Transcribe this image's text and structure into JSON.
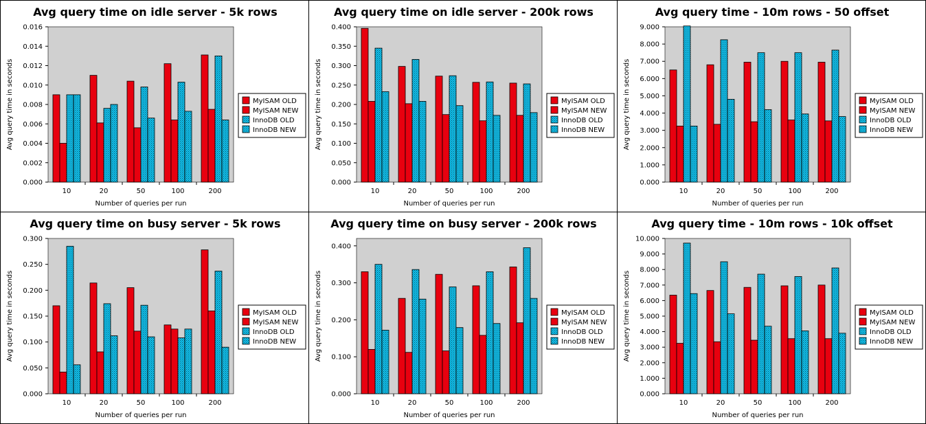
{
  "chart_data": [
    {
      "type": "bar",
      "title": "Avg query time on idle server - 5k rows",
      "xlabel": "Number of queries per run",
      "ylabel": "Avg query time in seconds",
      "categories": [
        "10",
        "20",
        "50",
        "100",
        "200"
      ],
      "ylim": [
        0,
        0.016
      ],
      "yticks": [
        "0.000",
        "0.002",
        "0.004",
        "0.006",
        "0.008",
        "0.010",
        "0.012",
        "0.014",
        "0.016"
      ],
      "series": [
        {
          "name": "MyISAM OLD",
          "values": [
            0.009,
            0.011,
            0.0104,
            0.0122,
            0.0131
          ]
        },
        {
          "name": "MyISAM NEW",
          "values": [
            0.004,
            0.0061,
            0.0056,
            0.0064,
            0.0075
          ]
        },
        {
          "name": "InnoDB OLD",
          "values": [
            0.009,
            0.0076,
            0.0098,
            0.0103,
            0.013
          ]
        },
        {
          "name": "InnoDB NEW",
          "values": [
            0.009,
            0.008,
            0.0066,
            0.0073,
            0.0064
          ]
        }
      ],
      "grid": false,
      "legend": "right"
    },
    {
      "type": "bar",
      "title": "Avg query time on idle server - 200k rows",
      "xlabel": "Number of queries per run",
      "ylabel": "Avg query time in seconds",
      "categories": [
        "10",
        "20",
        "50",
        "100",
        "200"
      ],
      "ylim": [
        0,
        0.4
      ],
      "yticks": [
        "0.000",
        "0.050",
        "0.100",
        "0.150",
        "0.200",
        "0.250",
        "0.300",
        "0.350",
        "0.400"
      ],
      "series": [
        {
          "name": "MyISAM OLD",
          "values": [
            0.396,
            0.298,
            0.273,
            0.257,
            0.255
          ]
        },
        {
          "name": "MyISAM NEW",
          "values": [
            0.208,
            0.202,
            0.174,
            0.158,
            0.172
          ]
        },
        {
          "name": "InnoDB OLD",
          "values": [
            0.345,
            0.316,
            0.274,
            0.258,
            0.253
          ]
        },
        {
          "name": "InnoDB NEW",
          "values": [
            0.233,
            0.208,
            0.197,
            0.172,
            0.179
          ]
        }
      ],
      "grid": false,
      "legend": "right"
    },
    {
      "type": "bar",
      "title": "Avg query time - 10m rows - 50 offset",
      "xlabel": "Number of queries per run",
      "ylabel": "Avg query time in seconds",
      "categories": [
        "10",
        "20",
        "50",
        "100",
        "200"
      ],
      "ylim": [
        0,
        9.0
      ],
      "yticks": [
        "0.000",
        "1.000",
        "2.000",
        "3.000",
        "4.000",
        "5.000",
        "6.000",
        "7.000",
        "8.000",
        "9.000"
      ],
      "series": [
        {
          "name": "MyISAM OLD",
          "values": [
            6.5,
            6.8,
            6.95,
            7.0,
            6.95
          ]
        },
        {
          "name": "MyISAM NEW",
          "values": [
            3.25,
            3.35,
            3.5,
            3.6,
            3.55
          ]
        },
        {
          "name": "InnoDB OLD",
          "values": [
            9.05,
            8.25,
            7.5,
            7.5,
            7.65
          ]
        },
        {
          "name": "InnoDB NEW",
          "values": [
            3.25,
            4.8,
            4.2,
            3.95,
            3.8
          ]
        }
      ],
      "grid": false,
      "legend": "right"
    },
    {
      "type": "bar",
      "title": "Avg query time on busy server - 5k rows",
      "xlabel": "Number of queries per run",
      "ylabel": "Avg query time in seconds",
      "categories": [
        "10",
        "20",
        "50",
        "100",
        "200"
      ],
      "ylim": [
        0,
        0.3
      ],
      "yticks": [
        "0.000",
        "0.050",
        "0.100",
        "0.150",
        "0.200",
        "0.250",
        "0.300"
      ],
      "series": [
        {
          "name": "MyISAM OLD",
          "values": [
            0.17,
            0.214,
            0.205,
            0.133,
            0.278
          ]
        },
        {
          "name": "MyISAM NEW",
          "values": [
            0.042,
            0.081,
            0.121,
            0.125,
            0.16
          ]
        },
        {
          "name": "InnoDB OLD",
          "values": [
            0.285,
            0.174,
            0.171,
            0.108,
            0.237
          ]
        },
        {
          "name": "InnoDB NEW",
          "values": [
            0.056,
            0.112,
            0.11,
            0.125,
            0.09
          ]
        }
      ],
      "grid": false,
      "legend": "right"
    },
    {
      "type": "bar",
      "title": "Avg query time on busy server - 200k rows",
      "xlabel": "Number of queries per run",
      "ylabel": "Avg query time in seconds",
      "categories": [
        "10",
        "20",
        "50",
        "100",
        "200"
      ],
      "ylim": [
        0,
        0.42
      ],
      "yticks": [
        "0.000",
        "0.100",
        "0.200",
        "0.300",
        "0.400"
      ],
      "series": [
        {
          "name": "MyISAM OLD",
          "values": [
            0.33,
            0.258,
            0.323,
            0.292,
            0.343
          ]
        },
        {
          "name": "MyISAM NEW",
          "values": [
            0.12,
            0.112,
            0.116,
            0.158,
            0.192
          ]
        },
        {
          "name": "InnoDB OLD",
          "values": [
            0.35,
            0.336,
            0.289,
            0.33,
            0.395
          ]
        },
        {
          "name": "InnoDB NEW",
          "values": [
            0.172,
            0.256,
            0.179,
            0.19,
            0.258
          ]
        }
      ],
      "grid": false,
      "legend": "right"
    },
    {
      "type": "bar",
      "title": "Avg query time - 10m rows - 10k offset",
      "xlabel": "Number of queries per run",
      "ylabel": "Avg query time in seconds",
      "categories": [
        "10",
        "20",
        "50",
        "100",
        "200"
      ],
      "ylim": [
        0,
        10.0
      ],
      "yticks": [
        "0.000",
        "1.000",
        "2.000",
        "3.000",
        "4.000",
        "5.000",
        "6.000",
        "7.000",
        "8.000",
        "9.000",
        "10.000"
      ],
      "series": [
        {
          "name": "MyISAM OLD",
          "values": [
            6.35,
            6.65,
            6.85,
            6.95,
            7.0
          ]
        },
        {
          "name": "MyISAM NEW",
          "values": [
            3.25,
            3.35,
            3.45,
            3.55,
            3.55
          ]
        },
        {
          "name": "InnoDB OLD",
          "values": [
            9.7,
            8.5,
            7.7,
            7.55,
            8.1
          ]
        },
        {
          "name": "InnoDB NEW",
          "values": [
            6.45,
            5.15,
            4.35,
            4.05,
            3.9
          ]
        }
      ],
      "grid": false,
      "legend": "right"
    }
  ],
  "colors": {
    "myisam": "#e8000f",
    "innodb": "#12c0ec",
    "plot_background": "#d0d0d0"
  }
}
